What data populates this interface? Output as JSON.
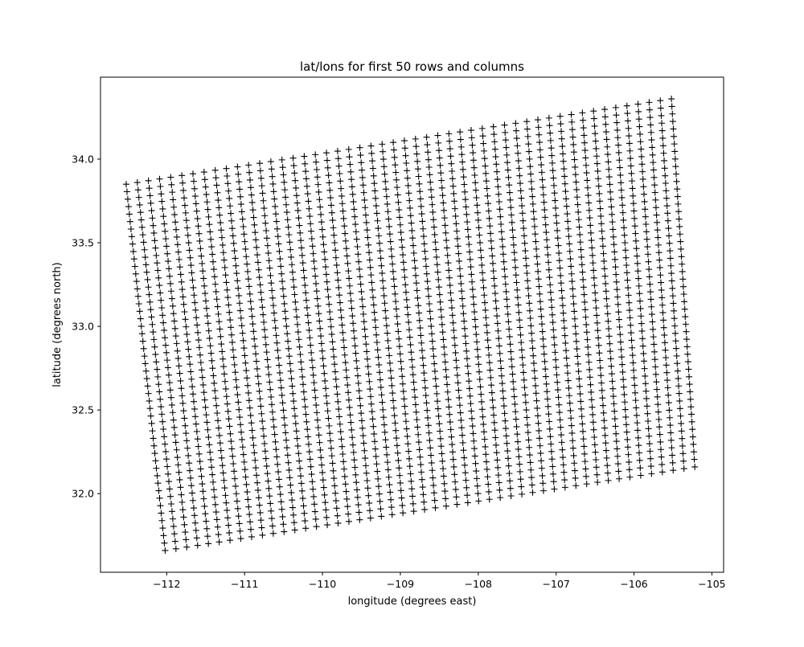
{
  "chart_data": {
    "type": "scatter",
    "title": "lat/lons for first 50 rows and columns",
    "xlabel": "longitude (degrees east)",
    "ylabel": "latitude (degrees north)",
    "xlim": [
      -112.85,
      -104.85
    ],
    "ylim": [
      31.53,
      34.49
    ],
    "xticks": [
      -112,
      -111,
      -110,
      -109,
      -108,
      -107,
      -106,
      -105
    ],
    "xtick_labels": [
      "−112",
      "−111",
      "−110",
      "−109",
      "−108",
      "−107",
      "−106",
      "−105"
    ],
    "yticks": [
      32.0,
      32.5,
      33.0,
      33.5,
      34.0
    ],
    "ytick_labels": [
      "32.0",
      "32.5",
      "33.0",
      "33.5",
      "34.0"
    ],
    "grid": false,
    "marker": "+",
    "marker_color": "#000000",
    "grid_shape": {
      "rows": 50,
      "cols": 50
    },
    "corners": {
      "top_left": [
        -112.52,
        33.85
      ],
      "top_right": [
        -105.52,
        34.36
      ],
      "bottom_left": [
        -112.02,
        31.66
      ],
      "bottom_right": [
        -105.22,
        32.16
      ]
    }
  }
}
